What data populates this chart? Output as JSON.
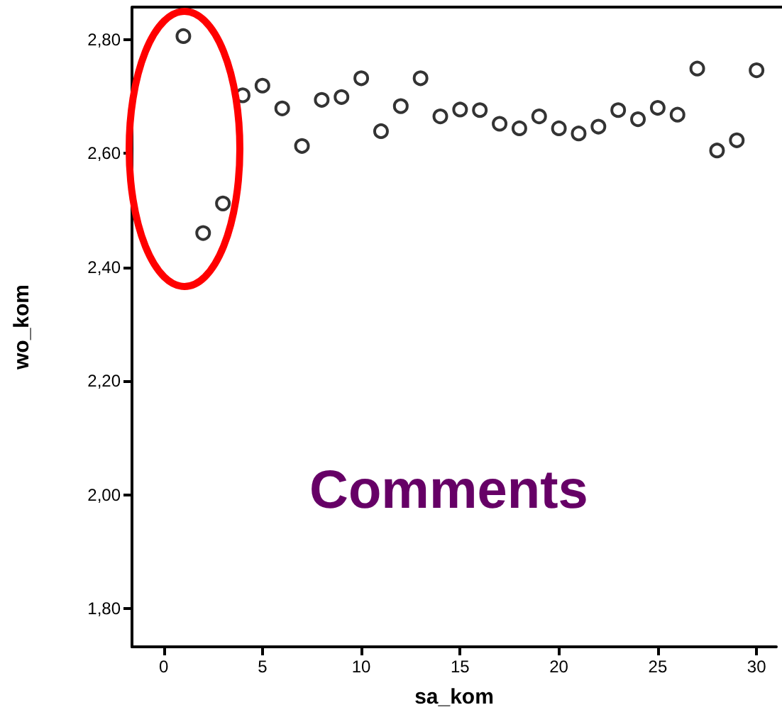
{
  "chart_data": {
    "type": "scatter",
    "xlabel": "sa_kom",
    "ylabel": "wo_kom",
    "annotations": [
      "Comments"
    ],
    "x": [
      1,
      2,
      3,
      4,
      5,
      6,
      7,
      8,
      9,
      10,
      11,
      12,
      13,
      14,
      15,
      16,
      17,
      18,
      19,
      20,
      21,
      22,
      23,
      24,
      25,
      26,
      27,
      28,
      29,
      30
    ],
    "series": [
      {
        "color": "#000000",
        "values": [
          2.806,
          2.46,
          2.512,
          2.702,
          2.719,
          2.679,
          2.613,
          2.694,
          2.699,
          2.732,
          2.639,
          2.683,
          2.732,
          2.665,
          2.677,
          2.676,
          2.652,
          2.644,
          2.665,
          2.644,
          2.635,
          2.647,
          2.676,
          2.66,
          2.68,
          2.668,
          2.749,
          2.605,
          2.623,
          2.746
        ]
      }
    ],
    "xlim": [
      -1.6,
      31
    ],
    "xticks": [
      0,
      5,
      10,
      15,
      20,
      25,
      30
    ],
    "ylim": [
      1.733,
      2.857
    ],
    "yticks": [
      {
        "value": 1.8,
        "label": "1,80"
      },
      {
        "value": 2.0,
        "label": "2,00"
      },
      {
        "value": 2.2,
        "label": "2,20"
      },
      {
        "value": 2.4,
        "label": "2,40"
      },
      {
        "value": 2.6,
        "label": "2,60"
      },
      {
        "value": 2.8,
        "label": "2,80"
      }
    ],
    "grid": false,
    "marker": "circle"
  }
}
